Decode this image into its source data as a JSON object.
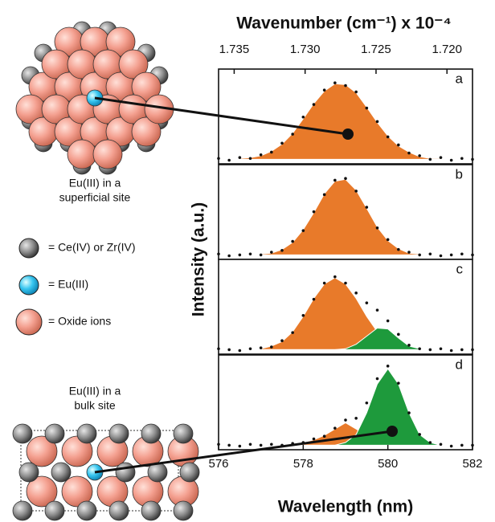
{
  "chart_data": {
    "type": "area",
    "xlabel": "Wavelength (nm)",
    "x2label": "Wavenumber (cm⁻¹) x 10⁻⁴",
    "ylabel": "Intensity (a.u.)",
    "x": [
      576,
      576.25,
      576.5,
      576.75,
      577,
      577.25,
      577.5,
      577.75,
      578,
      578.25,
      578.5,
      578.75,
      579,
      579.25,
      579.5,
      579.75,
      580,
      580.25,
      580.5,
      580.75,
      581,
      581.25,
      581.5,
      581.75,
      582
    ],
    "xlim": [
      576,
      582
    ],
    "xticks": [
      576,
      578,
      580,
      582
    ],
    "x2lim": [
      1.7361,
      1.7182
    ],
    "x2ticks": [
      1.735,
      {
        "value": 1.73,
        "label": "1.730"
      },
      1.725,
      {
        "value": 1.72,
        "label": "1.720"
      }
    ],
    "ylim": [
      0,
      1
    ],
    "panels": [
      {
        "label": "a",
        "series": [
          {
            "color": "#e87a2a",
            "values": [
              0.05,
              0.05,
              0.06,
              0.07,
              0.09,
              0.14,
              0.22,
              0.34,
              0.5,
              0.67,
              0.81,
              0.89,
              0.88,
              0.79,
              0.63,
              0.46,
              0.31,
              0.2,
              0.13,
              0.08,
              0.06,
              0.06,
              0.05,
              0.05,
              0.05
            ]
          }
        ],
        "points": {
          "color": "#111111",
          "values": [
            0.06,
            0.04,
            0.07,
            0.06,
            0.1,
            0.13,
            0.23,
            0.33,
            0.52,
            0.66,
            0.82,
            0.9,
            0.87,
            0.8,
            0.62,
            0.47,
            0.3,
            0.21,
            0.12,
            0.09,
            0.05,
            0.07,
            0.04,
            0.06,
            0.05
          ]
        }
      },
      {
        "label": "b",
        "series": [
          {
            "color": "#e87a2a",
            "values": [
              0.05,
              0.05,
              0.05,
              0.05,
              0.06,
              0.07,
              0.11,
              0.19,
              0.33,
              0.52,
              0.73,
              0.87,
              0.89,
              0.77,
              0.57,
              0.36,
              0.21,
              0.12,
              0.07,
              0.06,
              0.05,
              0.05,
              0.05,
              0.05,
              0.05
            ]
          }
        ],
        "points": {
          "color": "#111111",
          "values": [
            0.06,
            0.04,
            0.05,
            0.06,
            0.05,
            0.08,
            0.1,
            0.2,
            0.32,
            0.53,
            0.72,
            0.88,
            0.9,
            0.76,
            0.58,
            0.35,
            0.22,
            0.11,
            0.08,
            0.05,
            0.06,
            0.04,
            0.05,
            0.06,
            0.05
          ]
        }
      },
      {
        "label": "c",
        "series": [
          {
            "color": "#e87a2a",
            "values": [
              0.05,
              0.05,
              0.05,
              0.05,
              0.06,
              0.09,
              0.14,
              0.25,
              0.42,
              0.62,
              0.78,
              0.85,
              0.78,
              0.62,
              0.42,
              0.25,
              0.14,
              0.09,
              0.06,
              0.05,
              0.05,
              0.05,
              0.05,
              0.05,
              0.05
            ]
          },
          {
            "color": "#1e9a3c",
            "values": [
              0.05,
              0.05,
              0.05,
              0.05,
              0.05,
              0.05,
              0.05,
              0.05,
              0.05,
              0.05,
              0.05,
              0.05,
              0.06,
              0.11,
              0.2,
              0.29,
              0.28,
              0.18,
              0.09,
              0.06,
              0.05,
              0.05,
              0.05,
              0.05,
              0.05
            ]
          }
        ],
        "points": {
          "color": "#111111",
          "values": [
            0.06,
            0.05,
            0.04,
            0.06,
            0.07,
            0.08,
            0.15,
            0.24,
            0.43,
            0.61,
            0.79,
            0.86,
            0.79,
            0.68,
            0.57,
            0.49,
            0.37,
            0.22,
            0.1,
            0.06,
            0.05,
            0.06,
            0.04,
            0.05,
            0.05
          ]
        }
      },
      {
        "label": "d",
        "series": [
          {
            "color": "#e87a2a",
            "values": [
              0.05,
              0.05,
              0.05,
              0.05,
              0.05,
              0.05,
              0.05,
              0.06,
              0.08,
              0.11,
              0.16,
              0.23,
              0.3,
              0.23,
              0.16,
              0.11,
              0.08,
              0.06,
              0.05,
              0.05,
              0.05,
              0.05,
              0.05,
              0.05,
              0.05
            ]
          },
          {
            "color": "#1e9a3c",
            "values": [
              0.05,
              0.05,
              0.05,
              0.05,
              0.05,
              0.05,
              0.05,
              0.05,
              0.05,
              0.05,
              0.05,
              0.05,
              0.08,
              0.17,
              0.41,
              0.73,
              0.9,
              0.73,
              0.41,
              0.17,
              0.08,
              0.05,
              0.05,
              0.05,
              0.05
            ]
          }
        ],
        "points": {
          "color": "#111111",
          "values": [
            0.06,
            0.05,
            0.04,
            0.06,
            0.05,
            0.06,
            0.05,
            0.07,
            0.08,
            0.12,
            0.15,
            0.24,
            0.33,
            0.35,
            0.52,
            0.79,
            0.93,
            0.74,
            0.41,
            0.17,
            0.08,
            0.06,
            0.04,
            0.05,
            0.05
          ]
        }
      }
    ]
  },
  "illustration": {
    "superficial_label": [
      "Eu(III) in a",
      "superficial site"
    ],
    "key": [
      "= Ce(IV) or Zr(IV)",
      "= Eu(III)",
      "= Oxide ions"
    ],
    "bulk_label": [
      "Eu(III) in a",
      "bulk site"
    ]
  }
}
